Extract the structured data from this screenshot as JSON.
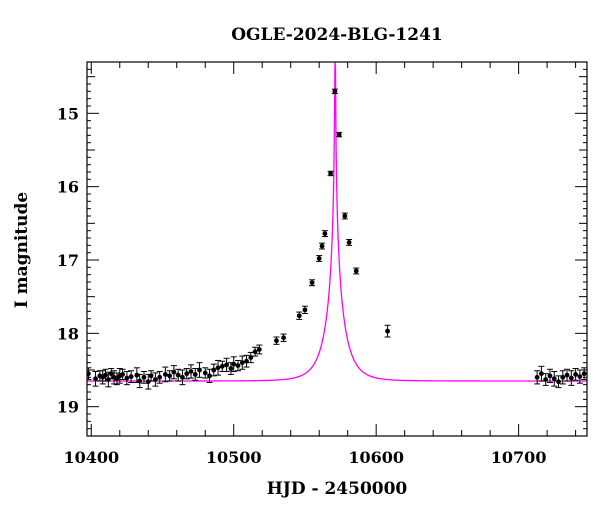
{
  "chart_data": {
    "type": "scatter",
    "title": "OGLE-2024-BLG-1241",
    "xlabel": "HJD - 2450000",
    "ylabel": "I magnitude",
    "xlim": [
      10397,
      10748
    ],
    "ylim": [
      19.4,
      14.3
    ],
    "y_inverted": true,
    "x_ticks": [
      10400,
      10500,
      10600,
      10700
    ],
    "y_ticks": [
      15,
      16,
      17,
      18,
      19
    ],
    "grid": false,
    "colors": {
      "model": "#ff00ff",
      "points": "#000000",
      "axes": "#000000"
    },
    "model": {
      "name": "",
      "t0": 10571.2,
      "u0": 0.0,
      "tE": 12.5,
      "I_base": 18.65,
      "cap_magnitude": 14.3
    },
    "series": [
      {
        "name": "",
        "points": [
          [
            10398,
            18.55,
            0.08
          ],
          [
            10403,
            18.62,
            0.1
          ],
          [
            10406,
            18.58,
            0.07
          ],
          [
            10408,
            18.6,
            0.09
          ],
          [
            10410,
            18.57,
            0.08
          ],
          [
            10412,
            18.63,
            0.1
          ],
          [
            10414,
            18.55,
            0.07
          ],
          [
            10416,
            18.6,
            0.09
          ],
          [
            10418,
            18.62,
            0.08
          ],
          [
            10420,
            18.58,
            0.1
          ],
          [
            10422,
            18.56,
            0.07
          ],
          [
            10425,
            18.61,
            0.09
          ],
          [
            10428,
            18.59,
            0.08
          ],
          [
            10432,
            18.57,
            0.1
          ],
          [
            10434,
            18.65,
            0.09
          ],
          [
            10437,
            18.6,
            0.08
          ],
          [
            10440,
            18.66,
            0.1
          ],
          [
            10442,
            18.58,
            0.07
          ],
          [
            10445,
            18.63,
            0.09
          ],
          [
            10448,
            18.6,
            0.08
          ],
          [
            10452,
            18.56,
            0.1
          ],
          [
            10455,
            18.58,
            0.07
          ],
          [
            10458,
            18.53,
            0.09
          ],
          [
            10461,
            18.57,
            0.08
          ],
          [
            10464,
            18.6,
            0.1
          ],
          [
            10467,
            18.55,
            0.07
          ],
          [
            10470,
            18.52,
            0.09
          ],
          [
            10473,
            18.56,
            0.08
          ],
          [
            10476,
            18.5,
            0.1
          ],
          [
            10480,
            18.54,
            0.07
          ],
          [
            10483,
            18.58,
            0.09
          ],
          [
            10486,
            18.5,
            0.08
          ],
          [
            10489,
            18.47,
            0.1
          ],
          [
            10492,
            18.45,
            0.07
          ],
          [
            10495,
            18.43,
            0.09
          ],
          [
            10498,
            18.48,
            0.08
          ],
          [
            10500,
            18.42,
            0.1
          ],
          [
            10503,
            18.44,
            0.07
          ],
          [
            10506,
            18.4,
            0.09
          ],
          [
            10509,
            18.38,
            0.08
          ],
          [
            10512,
            18.33,
            0.07
          ],
          [
            10515,
            18.25,
            0.06
          ],
          [
            10518,
            18.22,
            0.06
          ],
          [
            10530,
            18.1,
            0.05
          ],
          [
            10535,
            18.06,
            0.05
          ],
          [
            10546,
            17.76,
            0.05
          ],
          [
            10550,
            17.68,
            0.05
          ],
          [
            10555,
            17.31,
            0.04
          ],
          [
            10560,
            16.98,
            0.04
          ],
          [
            10562,
            16.81,
            0.04
          ],
          [
            10564,
            16.64,
            0.04
          ],
          [
            10568,
            15.82,
            0.03
          ],
          [
            10571,
            14.7,
            0.03
          ],
          [
            10574,
            15.29,
            0.03
          ],
          [
            10578,
            16.4,
            0.04
          ],
          [
            10581,
            16.76,
            0.04
          ],
          [
            10586,
            17.15,
            0.04
          ],
          [
            10608,
            17.97,
            0.08
          ],
          [
            10713,
            18.6,
            0.09
          ],
          [
            10716,
            18.55,
            0.1
          ],
          [
            10719,
            18.63,
            0.08
          ],
          [
            10722,
            18.58,
            0.09
          ],
          [
            10725,
            18.62,
            0.1
          ],
          [
            10728,
            18.66,
            0.08
          ],
          [
            10731,
            18.6,
            0.09
          ],
          [
            10734,
            18.57,
            0.08
          ],
          [
            10737,
            18.61,
            0.1
          ],
          [
            10740,
            18.56,
            0.08
          ],
          [
            10743,
            18.59,
            0.09
          ],
          [
            10746,
            18.55,
            0.08
          ]
        ]
      }
    ]
  }
}
